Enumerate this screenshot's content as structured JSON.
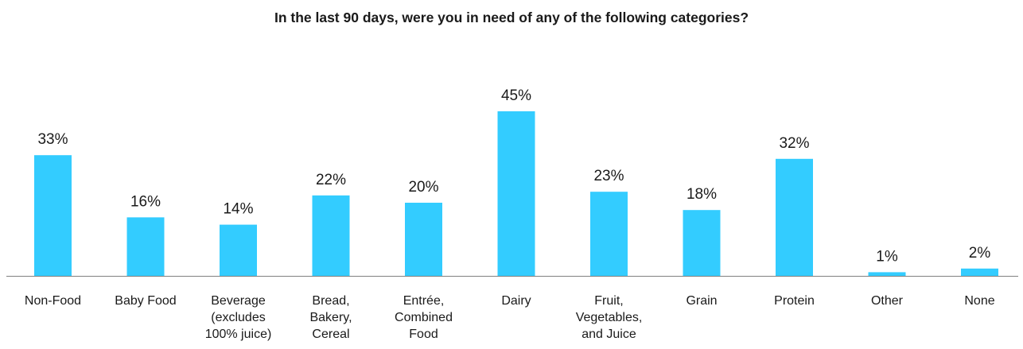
{
  "chart_data": {
    "type": "bar",
    "title": "In the last 90 days, were you in need of any of the following categories?",
    "categories": [
      [
        "Non-Food"
      ],
      [
        "Baby Food"
      ],
      [
        "Beverage",
        "(excludes",
        "100% juice)"
      ],
      [
        "Bread,",
        "Bakery,",
        "Cereal"
      ],
      [
        "Entrée,",
        "Combined",
        "Food"
      ],
      [
        "Dairy"
      ],
      [
        "Fruit,",
        "Vegetables,",
        "and Juice"
      ],
      [
        "Grain"
      ],
      [
        "Protein"
      ],
      [
        "Other"
      ],
      [
        "None"
      ]
    ],
    "values": [
      33,
      16,
      14,
      22,
      20,
      45,
      23,
      18,
      32,
      1,
      2
    ],
    "data_labels": [
      "33%",
      "16%",
      "14%",
      "22%",
      "20%",
      "45%",
      "23%",
      "18%",
      "32%",
      "1%",
      "2%"
    ],
    "value_unit": "%",
    "ylim": [
      0,
      50
    ],
    "grid": false,
    "legend": "none",
    "bar_color": "#33CCFF",
    "axis_color": "#808080"
  }
}
